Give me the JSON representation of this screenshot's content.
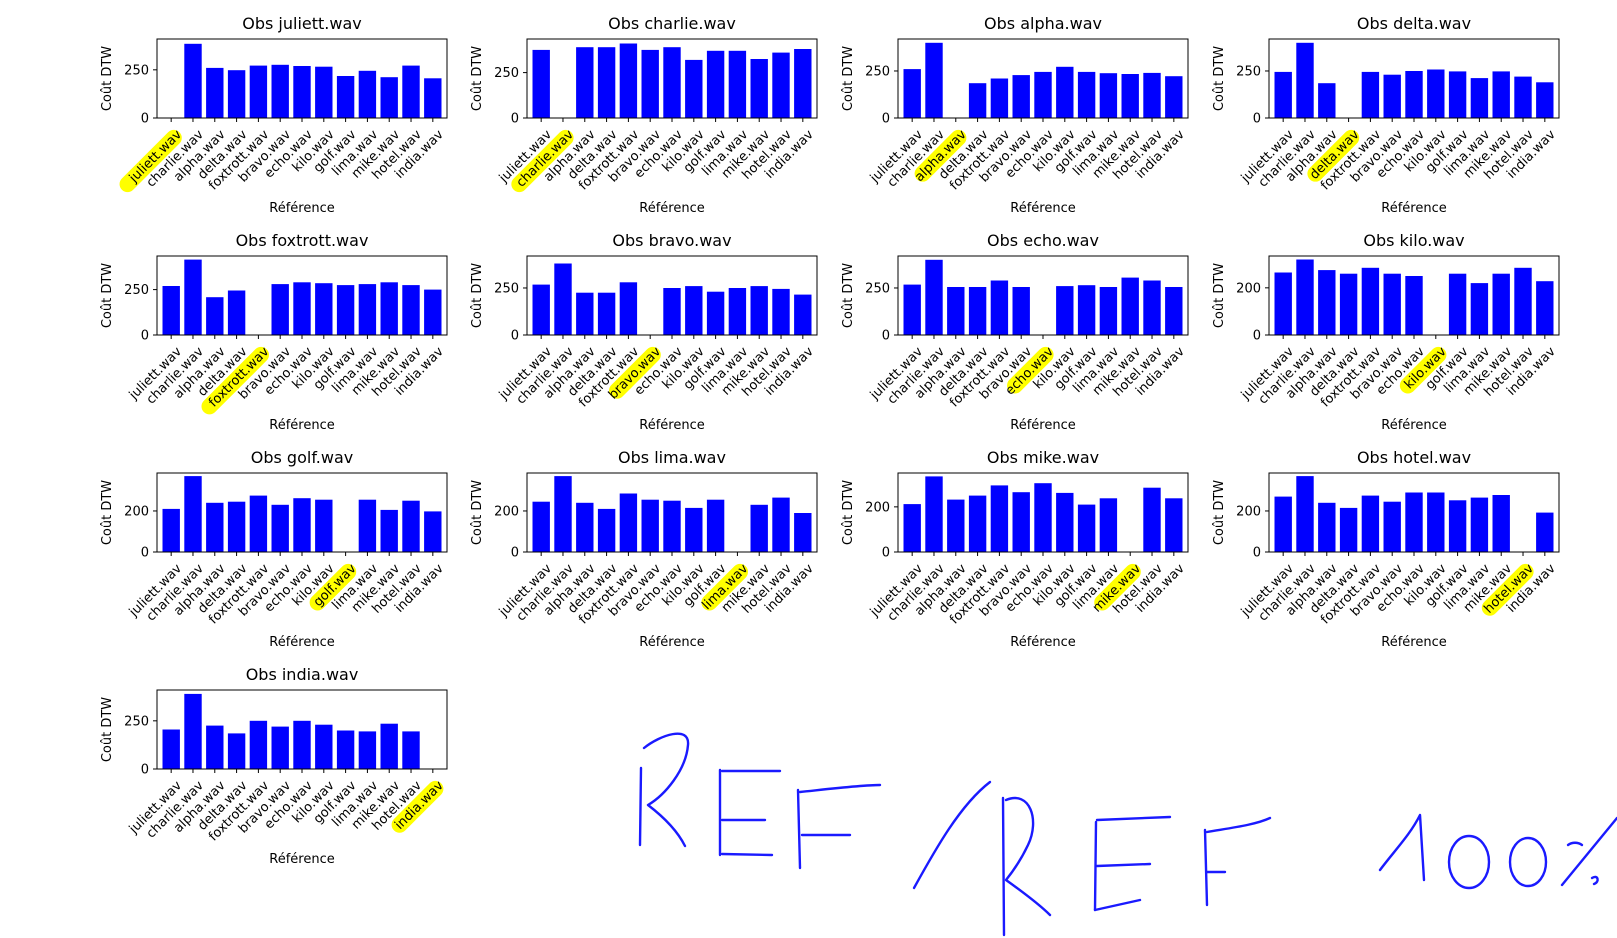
{
  "figure": {
    "xlabel": "Référence",
    "ylabel": "Coût DTW",
    "bar_color": "#0000ff",
    "highlight_color": "#ffff00",
    "handwritten_note": "REF / REF 100%"
  },
  "chart_data": [
    {
      "type": "bar",
      "title": "Obs juliett.wav",
      "highlight": "juliett.wav",
      "categories": [
        "juliett.wav",
        "charlie.wav",
        "alpha.wav",
        "delta.wav",
        "foxtrott.wav",
        "bravo.wav",
        "echo.wav",
        "kilo.wav",
        "golf.wav",
        "lima.wav",
        "mike.wav",
        "hotel.wav",
        "india.wav"
      ],
      "values": [
        0,
        385,
        260,
        248,
        272,
        276,
        270,
        266,
        218,
        245,
        212,
        272,
        206
      ],
      "yticks": [
        0,
        250
      ],
      "ylim": [
        0,
        410
      ],
      "xlabel": "Référence",
      "ylabel": "Coût DTW"
    },
    {
      "type": "bar",
      "title": "Obs charlie.wav",
      "highlight": "charlie.wav",
      "categories": [
        "juliett.wav",
        "charlie.wav",
        "alpha.wav",
        "delta.wav",
        "foxtrott.wav",
        "bravo.wav",
        "echo.wav",
        "kilo.wav",
        "golf.wav",
        "lima.wav",
        "mike.wav",
        "hotel.wav",
        "india.wav"
      ],
      "values": [
        375,
        0,
        390,
        390,
        410,
        375,
        390,
        320,
        370,
        370,
        325,
        360,
        380
      ],
      "yticks": [
        0,
        250
      ],
      "ylim": [
        0,
        435
      ],
      "xlabel": "Référence",
      "ylabel": "Coût DTW"
    },
    {
      "type": "bar",
      "title": "Obs alpha.wav",
      "highlight": "alpha.wav",
      "categories": [
        "juliett.wav",
        "charlie.wav",
        "alpha.wav",
        "delta.wav",
        "foxtrott.wav",
        "bravo.wav",
        "echo.wav",
        "kilo.wav",
        "golf.wav",
        "lima.wav",
        "mike.wav",
        "hotel.wav",
        "india.wav"
      ],
      "values": [
        260,
        400,
        0,
        185,
        210,
        228,
        245,
        272,
        245,
        238,
        234,
        240,
        222
      ],
      "yticks": [
        0,
        250
      ],
      "ylim": [
        0,
        420
      ],
      "xlabel": "Référence",
      "ylabel": "Coût DTW"
    },
    {
      "type": "bar",
      "title": "Obs delta.wav",
      "highlight": "delta.wav",
      "categories": [
        "juliett.wav",
        "charlie.wav",
        "alpha.wav",
        "delta.wav",
        "foxtrott.wav",
        "bravo.wav",
        "echo.wav",
        "kilo.wav",
        "golf.wav",
        "lima.wav",
        "mike.wav",
        "hotel.wav",
        "india.wav"
      ],
      "values": [
        245,
        400,
        185,
        0,
        245,
        230,
        250,
        258,
        248,
        212,
        248,
        220,
        190
      ],
      "yticks": [
        0,
        250
      ],
      "ylim": [
        0,
        420
      ],
      "xlabel": "Référence",
      "ylabel": "Coût DTW"
    },
    {
      "type": "bar",
      "title": "Obs foxtrott.wav",
      "highlight": "foxtrott.wav",
      "categories": [
        "juliett.wav",
        "charlie.wav",
        "alpha.wav",
        "delta.wav",
        "foxtrott.wav",
        "bravo.wav",
        "echo.wav",
        "kilo.wav",
        "golf.wav",
        "lima.wav",
        "mike.wav",
        "hotel.wav",
        "india.wav"
      ],
      "values": [
        270,
        415,
        208,
        245,
        0,
        280,
        290,
        285,
        275,
        280,
        290,
        275,
        250
      ],
      "yticks": [
        0,
        250
      ],
      "ylim": [
        0,
        435
      ],
      "xlabel": "Référence",
      "ylabel": "Coût DTW"
    },
    {
      "type": "bar",
      "title": "Obs bravo.wav",
      "highlight": "bravo.wav",
      "categories": [
        "juliett.wav",
        "charlie.wav",
        "alpha.wav",
        "delta.wav",
        "foxtrott.wav",
        "bravo.wav",
        "echo.wav",
        "kilo.wav",
        "golf.wav",
        "lima.wav",
        "mike.wav",
        "hotel.wav",
        "india.wav"
      ],
      "values": [
        268,
        380,
        225,
        225,
        280,
        0,
        250,
        260,
        230,
        250,
        260,
        245,
        215
      ],
      "yticks": [
        0,
        250
      ],
      "ylim": [
        0,
        420
      ],
      "xlabel": "Référence",
      "ylabel": "Coût DTW"
    },
    {
      "type": "bar",
      "title": "Obs echo.wav",
      "highlight": "echo.wav",
      "categories": [
        "juliett.wav",
        "charlie.wav",
        "alpha.wav",
        "delta.wav",
        "foxtrott.wav",
        "bravo.wav",
        "echo.wav",
        "kilo.wav",
        "golf.wav",
        "lima.wav",
        "mike.wav",
        "hotel.wav",
        "india.wav"
      ],
      "values": [
        268,
        400,
        255,
        255,
        290,
        255,
        0,
        260,
        265,
        255,
        305,
        290,
        255
      ],
      "yticks": [
        0,
        250
      ],
      "ylim": [
        0,
        420
      ],
      "xlabel": "Référence",
      "ylabel": "Coût DTW"
    },
    {
      "type": "bar",
      "title": "Obs kilo.wav",
      "highlight": "kilo.wav",
      "categories": [
        "juliett.wav",
        "charlie.wav",
        "alpha.wav",
        "delta.wav",
        "foxtrott.wav",
        "bravo.wav",
        "echo.wav",
        "kilo.wav",
        "golf.wav",
        "lima.wav",
        "mike.wav",
        "hotel.wav",
        "india.wav"
      ],
      "values": [
        265,
        320,
        275,
        260,
        285,
        260,
        250,
        0,
        260,
        220,
        260,
        285,
        228
      ],
      "yticks": [
        0,
        200
      ],
      "ylim": [
        0,
        335
      ],
      "xlabel": "Référence",
      "ylabel": "Coût DTW"
    },
    {
      "type": "bar",
      "title": "Obs golf.wav",
      "highlight": "golf.wav",
      "categories": [
        "juliett.wav",
        "charlie.wav",
        "alpha.wav",
        "delta.wav",
        "foxtrott.wav",
        "bravo.wav",
        "echo.wav",
        "kilo.wav",
        "golf.wav",
        "lima.wav",
        "mike.wav",
        "hotel.wav",
        "india.wav"
      ],
      "values": [
        210,
        370,
        240,
        245,
        275,
        230,
        262,
        255,
        0,
        255,
        205,
        250,
        198
      ],
      "yticks": [
        0,
        200
      ],
      "ylim": [
        0,
        385
      ],
      "xlabel": "Référence",
      "ylabel": "Coût DTW"
    },
    {
      "type": "bar",
      "title": "Obs lima.wav",
      "highlight": "lima.wav",
      "categories": [
        "juliett.wav",
        "charlie.wav",
        "alpha.wav",
        "delta.wav",
        "foxtrott.wav",
        "bravo.wav",
        "echo.wav",
        "kilo.wav",
        "golf.wav",
        "lima.wav",
        "mike.wav",
        "hotel.wav",
        "india.wav"
      ],
      "values": [
        245,
        370,
        240,
        210,
        285,
        255,
        250,
        215,
        255,
        0,
        230,
        265,
        190
      ],
      "yticks": [
        0,
        200
      ],
      "ylim": [
        0,
        385
      ],
      "xlabel": "Référence",
      "ylabel": "Coût DTW"
    },
    {
      "type": "bar",
      "title": "Obs mike.wav",
      "highlight": "mike.wav",
      "categories": [
        "juliett.wav",
        "charlie.wav",
        "alpha.wav",
        "delta.wav",
        "foxtrott.wav",
        "bravo.wav",
        "echo.wav",
        "kilo.wav",
        "golf.wav",
        "lima.wav",
        "mike.wav",
        "hotel.wav",
        "india.wav"
      ],
      "values": [
        212,
        335,
        232,
        250,
        295,
        265,
        305,
        262,
        210,
        238,
        0,
        285,
        238
      ],
      "yticks": [
        0,
        200
      ],
      "ylim": [
        0,
        350
      ],
      "xlabel": "Référence",
      "ylabel": "Coût DTW"
    },
    {
      "type": "bar",
      "title": "Obs hotel.wav",
      "highlight": "hotel.wav",
      "categories": [
        "juliett.wav",
        "charlie.wav",
        "alpha.wav",
        "delta.wav",
        "foxtrott.wav",
        "bravo.wav",
        "echo.wav",
        "kilo.wav",
        "golf.wav",
        "lima.wav",
        "mike.wav",
        "hotel.wav",
        "india.wav"
      ],
      "values": [
        270,
        370,
        240,
        215,
        275,
        245,
        290,
        290,
        252,
        265,
        278,
        0,
        192
      ],
      "yticks": [
        0,
        200
      ],
      "ylim": [
        0,
        385
      ],
      "xlabel": "Référence",
      "ylabel": "Coût DTW"
    },
    {
      "type": "bar",
      "title": "Obs india.wav",
      "highlight": "india.wav",
      "categories": [
        "juliett.wav",
        "charlie.wav",
        "alpha.wav",
        "delta.wav",
        "foxtrott.wav",
        "bravo.wav",
        "echo.wav",
        "kilo.wav",
        "golf.wav",
        "lima.wav",
        "mike.wav",
        "hotel.wav",
        "india.wav"
      ],
      "values": [
        205,
        390,
        225,
        185,
        250,
        220,
        250,
        230,
        200,
        195,
        235,
        195,
        0
      ],
      "yticks": [
        0,
        250
      ],
      "ylim": [
        0,
        410
      ],
      "xlabel": "Référence",
      "ylabel": "Coût DTW"
    }
  ]
}
